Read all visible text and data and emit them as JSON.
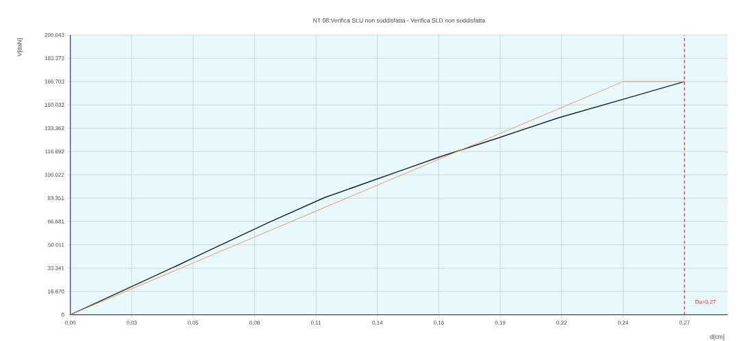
{
  "chart_data": {
    "type": "line",
    "title": "NT 08:Verifica SLU non soddisfatta  -  Verifica SLD non soddisfatta",
    "xlabel": "d[cm]",
    "ylabel": "V[daN]",
    "series": [
      {
        "color": "#1c2226",
        "x": [
          0,
          0.0073,
          0.0469,
          0.0582,
          0.0874,
          0.1118,
          0.1464,
          0.1625,
          0.1881,
          0.2144,
          0.2489,
          0.27
        ],
        "values": [
          0,
          5400,
          35100,
          43800,
          66100,
          83800,
          103700,
          112900,
          126400,
          140700,
          156800,
          166700
        ]
      },
      {
        "color": "#e4a27e",
        "x": [
          0,
          0.243,
          0.27
        ],
        "values": [
          0,
          166700,
          166700
        ]
      }
    ],
    "xlim": [
      0,
      0.289
    ],
    "ylim": [
      0,
      200043
    ],
    "xticks": [
      {
        "value": 0,
        "label": "0,00"
      },
      {
        "value": 0.027,
        "label": "0,03"
      },
      {
        "value": 0.054,
        "label": "0,05"
      },
      {
        "value": 0.081,
        "label": "0,08"
      },
      {
        "value": 0.108,
        "label": "0,11"
      },
      {
        "value": 0.135,
        "label": "0,14"
      },
      {
        "value": 0.162,
        "label": "0,16"
      },
      {
        "value": 0.189,
        "label": "0,19"
      },
      {
        "value": 0.216,
        "label": "0,22"
      },
      {
        "value": 0.243,
        "label": "0,24"
      },
      {
        "value": 0.27,
        "label": "0,27"
      }
    ],
    "yticks": [
      0,
      {
        "value": 16670,
        "label": "16.670"
      },
      {
        "value": 33341,
        "label": "33.341"
      },
      {
        "value": 50011,
        "label": "50.011"
      },
      {
        "value": 66681,
        "label": "66.681"
      },
      {
        "value": 83351,
        "label": "83.351"
      },
      {
        "value": 100022,
        "label": "100.022"
      },
      {
        "value": 116692,
        "label": "116.692"
      },
      {
        "value": 133362,
        "label": "133.362"
      },
      {
        "value": 150032,
        "label": "150.032"
      },
      {
        "value": 166703,
        "label": "166.703"
      },
      {
        "value": 183373,
        "label": "183.373"
      },
      {
        "value": 200043,
        "label": "200.043"
      }
    ],
    "ref_lines": [
      {
        "axis": "x",
        "value": 0.27,
        "label": "Du=0,27",
        "color": "#e02020",
        "line_style": "dashed"
      }
    ],
    "grid": true,
    "marker": "none",
    "line_style": "solid"
  }
}
